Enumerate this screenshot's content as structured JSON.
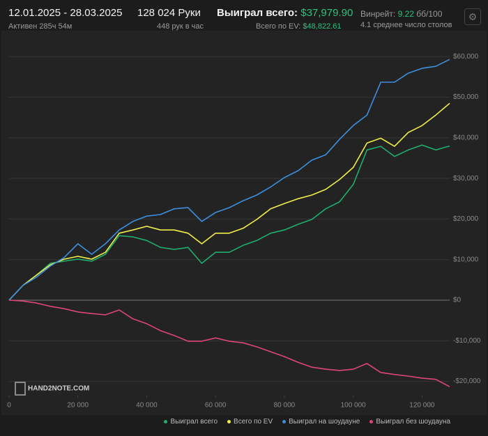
{
  "header": {
    "period": "12.01.2025 - 28.03.2025",
    "active": "Активен 285ч 54м",
    "hands": "128 024 Руки",
    "hands_per_hour": "448 рук в час",
    "won_label": "Выиграл всего:",
    "won_value": "$37,979.90",
    "ev_label": "Всего по EV:",
    "ev_value": "$48,822.61",
    "winrate_label": "Винрейт:",
    "winrate_value": "9.22",
    "winrate_unit": "бб/100",
    "tables": "4.1 среднее число столов"
  },
  "watermark": "HAND2NOTE.COM",
  "chart_data": {
    "type": "line",
    "x": [
      0,
      4000,
      8000,
      12000,
      16000,
      20000,
      24000,
      28000,
      32000,
      36000,
      40000,
      44000,
      48000,
      52000,
      56000,
      60000,
      64000,
      68000,
      72000,
      76000,
      80000,
      84000,
      88000,
      92000,
      96000,
      100000,
      104000,
      108000,
      112000,
      116000,
      120000,
      124000,
      128024
    ],
    "series": [
      {
        "name": "Выиграл всего",
        "color": "#1fae6e",
        "values": [
          0,
          3600,
          6200,
          9100,
          9600,
          10100,
          9600,
          11300,
          15900,
          15600,
          14700,
          13000,
          12500,
          13000,
          9100,
          11800,
          11800,
          13500,
          14700,
          16500,
          17300,
          18700,
          19900,
          22500,
          24200,
          28500,
          37000,
          37900,
          35400,
          37000,
          38200,
          37000,
          37980
        ]
      },
      {
        "name": "Всего по EV",
        "color": "#f0f04a",
        "values": [
          0,
          3600,
          6200,
          8700,
          10100,
          10800,
          10100,
          11800,
          16500,
          17300,
          18200,
          17300,
          17300,
          16500,
          13900,
          16500,
          16500,
          17700,
          19900,
          22500,
          23800,
          25000,
          25900,
          27300,
          29700,
          32700,
          38700,
          39900,
          37900,
          41300,
          43000,
          45600,
          48500
        ]
      },
      {
        "name": "Выиграл на шоудауне",
        "color": "#3d8fe0",
        "values": [
          0,
          3600,
          5700,
          8400,
          10500,
          13900,
          11300,
          13900,
          17300,
          19400,
          20700,
          21100,
          22500,
          22800,
          19400,
          21600,
          22800,
          24500,
          25900,
          27900,
          30200,
          31900,
          34500,
          35800,
          39600,
          43000,
          45600,
          53700,
          53700,
          55900,
          57100,
          57600,
          59300
        ]
      },
      {
        "name": "Выиграл без шоудауна",
        "color": "#e0457a",
        "values": [
          0,
          -200,
          -700,
          -1500,
          -2100,
          -2900,
          -3300,
          -3600,
          -2400,
          -4600,
          -5800,
          -7500,
          -8700,
          -10100,
          -10100,
          -9300,
          -10100,
          -10500,
          -11500,
          -12700,
          -13900,
          -15300,
          -16500,
          -17000,
          -17300,
          -17000,
          -15600,
          -17800,
          -18300,
          -18700,
          -19200,
          -19500,
          -21300
        ]
      }
    ],
    "xlim": [
      0,
      128024
    ],
    "xticks": [
      0,
      {
        "value": 20000,
        "label": "20 000"
      },
      {
        "value": 40000,
        "label": "40 000"
      },
      {
        "value": 60000,
        "label": "60 000"
      },
      {
        "value": 80000,
        "label": "80 000"
      },
      {
        "value": 100000,
        "label": "100 000"
      },
      {
        "value": 120000,
        "label": "120 000"
      }
    ],
    "ylim": [
      -23500,
      64500
    ],
    "yticks": [
      {
        "value": -20000,
        "label": "-$20,000"
      },
      {
        "value": -10000,
        "label": "-$10,000"
      },
      {
        "value": 0,
        "label": "$0"
      },
      {
        "value": 10000,
        "label": "$10,000"
      },
      {
        "value": 20000,
        "label": "$20,000"
      },
      {
        "value": 30000,
        "label": "$30,000"
      },
      {
        "value": 40000,
        "label": "$40,000"
      },
      {
        "value": 50000,
        "label": "$50,000"
      },
      {
        "value": 60000,
        "label": "$60,000"
      }
    ],
    "grid": true
  }
}
